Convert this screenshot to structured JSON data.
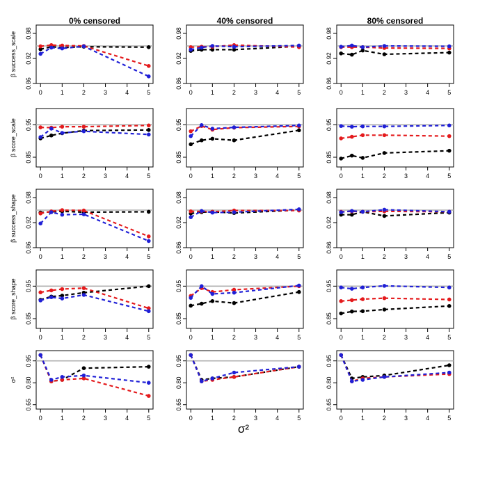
{
  "figure": {
    "column_titles": [
      "0% censored",
      "40% censored",
      "80% censored"
    ],
    "row_labels": [
      "β success_scale",
      "β score_scale",
      "β success_shape",
      "β score_shape",
      "σ²"
    ],
    "x_axis_label": "σ²",
    "x_ticks": [
      "0",
      "1",
      "2",
      "3",
      "4",
      "5"
    ],
    "series_colors": {
      "black": "#000000",
      "red": "#e41a1c",
      "blue": "#1f1fd6"
    },
    "reference_line_color": "#b0b0b0"
  },
  "chart_data": [
    {
      "type": "line",
      "row": 0,
      "col": 0,
      "title": "0% censored",
      "ylabel": "β success_scale",
      "x": [
        0,
        0.5,
        1,
        2,
        5
      ],
      "ylim": [
        0.86,
        1.0
      ],
      "yticks": [
        "0.86",
        "0.92",
        "0.98"
      ],
      "reference_line": 0.95,
      "series": [
        {
          "name": "black",
          "values": [
            0.942,
            0.948,
            0.946,
            0.948,
            0.947
          ]
        },
        {
          "name": "red",
          "values": [
            0.949,
            0.952,
            0.951,
            0.95,
            0.902
          ]
        },
        {
          "name": "blue",
          "values": [
            0.931,
            0.946,
            0.944,
            0.949,
            0.877
          ]
        }
      ]
    },
    {
      "type": "line",
      "row": 0,
      "col": 1,
      "title": "40% censored",
      "ylabel": "β success_scale",
      "x": [
        0,
        0.5,
        1,
        2,
        5
      ],
      "ylim": [
        0.86,
        1.0
      ],
      "yticks": [
        "0.86",
        "0.92",
        "0.98"
      ],
      "reference_line": 0.95,
      "series": [
        {
          "name": "black",
          "values": [
            0.938,
            0.941,
            0.941,
            0.941,
            0.949
          ]
        },
        {
          "name": "red",
          "values": [
            0.947,
            0.948,
            0.948,
            0.952,
            0.947
          ]
        },
        {
          "name": "blue",
          "values": [
            0.941,
            0.946,
            0.95,
            0.948,
            0.951
          ]
        }
      ]
    },
    {
      "type": "line",
      "row": 0,
      "col": 2,
      "title": "80% censored",
      "ylabel": "β success_scale",
      "x": [
        0,
        0.5,
        1,
        2,
        5
      ],
      "ylim": [
        0.86,
        1.0
      ],
      "yticks": [
        "0.86",
        "0.92",
        "0.98"
      ],
      "reference_line": 0.95,
      "series": [
        {
          "name": "black",
          "values": [
            0.932,
            0.929,
            0.939,
            0.93,
            0.934
          ]
        },
        {
          "name": "red",
          "values": [
            0.947,
            0.947,
            0.947,
            0.945,
            0.944
          ]
        },
        {
          "name": "blue",
          "values": [
            0.948,
            0.951,
            0.947,
            0.95,
            0.949
          ]
        }
      ]
    },
    {
      "type": "line",
      "row": 1,
      "col": 0,
      "title": "0% censored",
      "ylabel": "β score_scale",
      "x": [
        0,
        0.5,
        1,
        2,
        5
      ],
      "ylim": [
        0.82,
        1.0
      ],
      "yticks": [
        "0.85",
        "0.95"
      ],
      "reference_line": 0.95,
      "series": [
        {
          "name": "black",
          "values": [
            0.908,
            0.917,
            0.924,
            0.932,
            0.934
          ]
        },
        {
          "name": "red",
          "values": [
            0.942,
            0.941,
            0.944,
            0.944,
            0.948
          ]
        },
        {
          "name": "blue",
          "values": [
            0.912,
            0.938,
            0.925,
            0.93,
            0.92
          ]
        }
      ]
    },
    {
      "type": "line",
      "row": 1,
      "col": 1,
      "title": "40% censored",
      "ylabel": "β score_scale",
      "x": [
        0,
        0.5,
        1,
        2,
        5
      ],
      "ylim": [
        0.82,
        1.0
      ],
      "yticks": [
        "0.85",
        "0.95"
      ],
      "reference_line": 0.95,
      "series": [
        {
          "name": "black",
          "values": [
            0.89,
            0.902,
            0.907,
            0.902,
            0.933
          ]
        },
        {
          "name": "red",
          "values": [
            0.93,
            0.946,
            0.935,
            0.941,
            0.945
          ]
        },
        {
          "name": "blue",
          "values": [
            0.915,
            0.949,
            0.938,
            0.942,
            0.948
          ]
        }
      ]
    },
    {
      "type": "line",
      "row": 1,
      "col": 2,
      "title": "80% censored",
      "ylabel": "β score_scale",
      "x": [
        0,
        0.5,
        1,
        2,
        5
      ],
      "ylim": [
        0.82,
        1.0
      ],
      "yticks": [
        "0.85",
        "0.95"
      ],
      "reference_line": 0.95,
      "series": [
        {
          "name": "black",
          "values": [
            0.846,
            0.855,
            0.848,
            0.863,
            0.87
          ]
        },
        {
          "name": "red",
          "values": [
            0.908,
            0.913,
            0.918,
            0.918,
            0.915
          ]
        },
        {
          "name": "blue",
          "values": [
            0.946,
            0.944,
            0.945,
            0.945,
            0.948
          ]
        }
      ]
    },
    {
      "type": "line",
      "row": 2,
      "col": 0,
      "title": "0% censored",
      "ylabel": "β success_shape",
      "x": [
        0,
        0.5,
        1,
        2,
        5
      ],
      "ylim": [
        0.86,
        1.0
      ],
      "yticks": [
        "0.86",
        "0.92",
        "0.98"
      ],
      "reference_line": 0.95,
      "series": [
        {
          "name": "black",
          "values": [
            0.944,
            0.946,
            0.947,
            0.945,
            0.946
          ]
        },
        {
          "name": "red",
          "values": [
            0.942,
            0.947,
            0.95,
            0.949,
            0.887
          ]
        },
        {
          "name": "blue",
          "values": [
            0.918,
            0.945,
            0.939,
            0.94,
            0.876
          ]
        }
      ]
    },
    {
      "type": "line",
      "row": 2,
      "col": 1,
      "title": "40% censored",
      "ylabel": "β success_shape",
      "x": [
        0,
        0.5,
        1,
        2,
        5
      ],
      "ylim": [
        0.86,
        1.0
      ],
      "yticks": [
        "0.86",
        "0.92",
        "0.98"
      ],
      "reference_line": 0.95,
      "series": [
        {
          "name": "black",
          "values": [
            0.942,
            0.945,
            0.946,
            0.943,
            0.95
          ]
        },
        {
          "name": "red",
          "values": [
            0.947,
            0.947,
            0.946,
            0.949,
            0.949
          ]
        },
        {
          "name": "blue",
          "values": [
            0.933,
            0.948,
            0.944,
            0.945,
            0.952
          ]
        }
      ]
    },
    {
      "type": "line",
      "row": 2,
      "col": 2,
      "title": "80% censored",
      "ylabel": "β success_shape",
      "x": [
        0,
        0.5,
        1,
        2,
        5
      ],
      "ylim": [
        0.86,
        1.0
      ],
      "yticks": [
        "0.86",
        "0.92",
        "0.98"
      ],
      "reference_line": 0.95,
      "series": [
        {
          "name": "black",
          "values": [
            0.939,
            0.939,
            0.946,
            0.936,
            0.944
          ]
        },
        {
          "name": "red",
          "values": [
            0.946,
            0.947,
            0.946,
            0.947,
            0.946
          ]
        },
        {
          "name": "blue",
          "values": [
            0.945,
            0.948,
            0.946,
            0.951,
            0.946
          ]
        }
      ]
    },
    {
      "type": "line",
      "row": 3,
      "col": 0,
      "title": "0% censored",
      "ylabel": "β score_shape",
      "x": [
        0,
        0.5,
        1,
        2,
        5
      ],
      "ylim": [
        0.82,
        1.0
      ],
      "yticks": [
        "0.85",
        "0.95"
      ],
      "reference_line": 0.95,
      "series": [
        {
          "name": "black",
          "values": [
            0.908,
            0.918,
            0.921,
            0.93,
            0.95
          ]
        },
        {
          "name": "red",
          "values": [
            0.931,
            0.937,
            0.941,
            0.944,
            0.882
          ]
        },
        {
          "name": "blue",
          "values": [
            0.906,
            0.916,
            0.912,
            0.923,
            0.873
          ]
        }
      ]
    },
    {
      "type": "line",
      "row": 3,
      "col": 1,
      "title": "40% censored",
      "ylabel": "β score_shape",
      "x": [
        0,
        0.5,
        1,
        2,
        5
      ],
      "ylim": [
        0.82,
        1.0
      ],
      "yticks": [
        "0.85",
        "0.95"
      ],
      "reference_line": 0.95,
      "series": [
        {
          "name": "black",
          "values": [
            0.89,
            0.896,
            0.904,
            0.898,
            0.932
          ]
        },
        {
          "name": "red",
          "values": [
            0.92,
            0.944,
            0.932,
            0.939,
            0.95
          ]
        },
        {
          "name": "blue",
          "values": [
            0.914,
            0.95,
            0.926,
            0.93,
            0.952
          ]
        }
      ]
    },
    {
      "type": "line",
      "row": 3,
      "col": 2,
      "title": "80% censored",
      "ylabel": "β score_shape",
      "x": [
        0,
        0.5,
        1,
        2,
        5
      ],
      "ylim": [
        0.82,
        1.0
      ],
      "yticks": [
        "0.85",
        "0.95"
      ],
      "reference_line": 0.95,
      "series": [
        {
          "name": "black",
          "values": [
            0.866,
            0.872,
            0.873,
            0.878,
            0.889
          ]
        },
        {
          "name": "red",
          "values": [
            0.904,
            0.907,
            0.91,
            0.913,
            0.909
          ]
        },
        {
          "name": "blue",
          "values": [
            0.946,
            0.942,
            0.946,
            0.951,
            0.946
          ]
        }
      ]
    },
    {
      "type": "line",
      "row": 4,
      "col": 0,
      "title": "0% censored",
      "ylabel": "σ²",
      "x": [
        0,
        0.5,
        1,
        2,
        5
      ],
      "ylim": [
        0.62,
        1.02
      ],
      "yticks": [
        "0.65",
        "0.80",
        "0.95"
      ],
      "reference_line": 0.95,
      "series": [
        {
          "name": "black",
          "values": [
            0.99,
            0.81,
            0.82,
            0.9,
            0.91
          ]
        },
        {
          "name": "red",
          "values": [
            0.99,
            0.81,
            0.82,
            0.83,
            0.71
          ]
        },
        {
          "name": "blue",
          "values": [
            0.99,
            0.82,
            0.84,
            0.85,
            0.8
          ]
        }
      ]
    },
    {
      "type": "line",
      "row": 4,
      "col": 1,
      "title": "40% censored",
      "ylabel": "σ²",
      "x": [
        0,
        0.5,
        1,
        2,
        5
      ],
      "ylim": [
        0.62,
        1.02
      ],
      "yticks": [
        "0.65",
        "0.80",
        "0.95"
      ],
      "reference_line": 0.95,
      "series": [
        {
          "name": "black",
          "values": [
            0.99,
            0.82,
            0.83,
            0.84,
            0.91
          ]
        },
        {
          "name": "red",
          "values": [
            0.99,
            0.81,
            0.82,
            0.84,
            0.91
          ]
        },
        {
          "name": "blue",
          "values": [
            0.99,
            0.81,
            0.83,
            0.87,
            0.91
          ]
        }
      ]
    },
    {
      "type": "line",
      "row": 4,
      "col": 2,
      "title": "80% censored",
      "ylabel": "σ²",
      "x": [
        0,
        0.5,
        1,
        2,
        5
      ],
      "ylim": [
        0.62,
        1.02
      ],
      "yticks": [
        "0.65",
        "0.80",
        "0.95"
      ],
      "reference_line": 0.95,
      "series": [
        {
          "name": "black",
          "values": [
            0.99,
            0.83,
            0.84,
            0.85,
            0.92
          ]
        },
        {
          "name": "red",
          "values": [
            0.99,
            0.81,
            0.83,
            0.84,
            0.86
          ]
        },
        {
          "name": "blue",
          "values": [
            0.99,
            0.81,
            0.82,
            0.84,
            0.87
          ]
        }
      ]
    }
  ]
}
